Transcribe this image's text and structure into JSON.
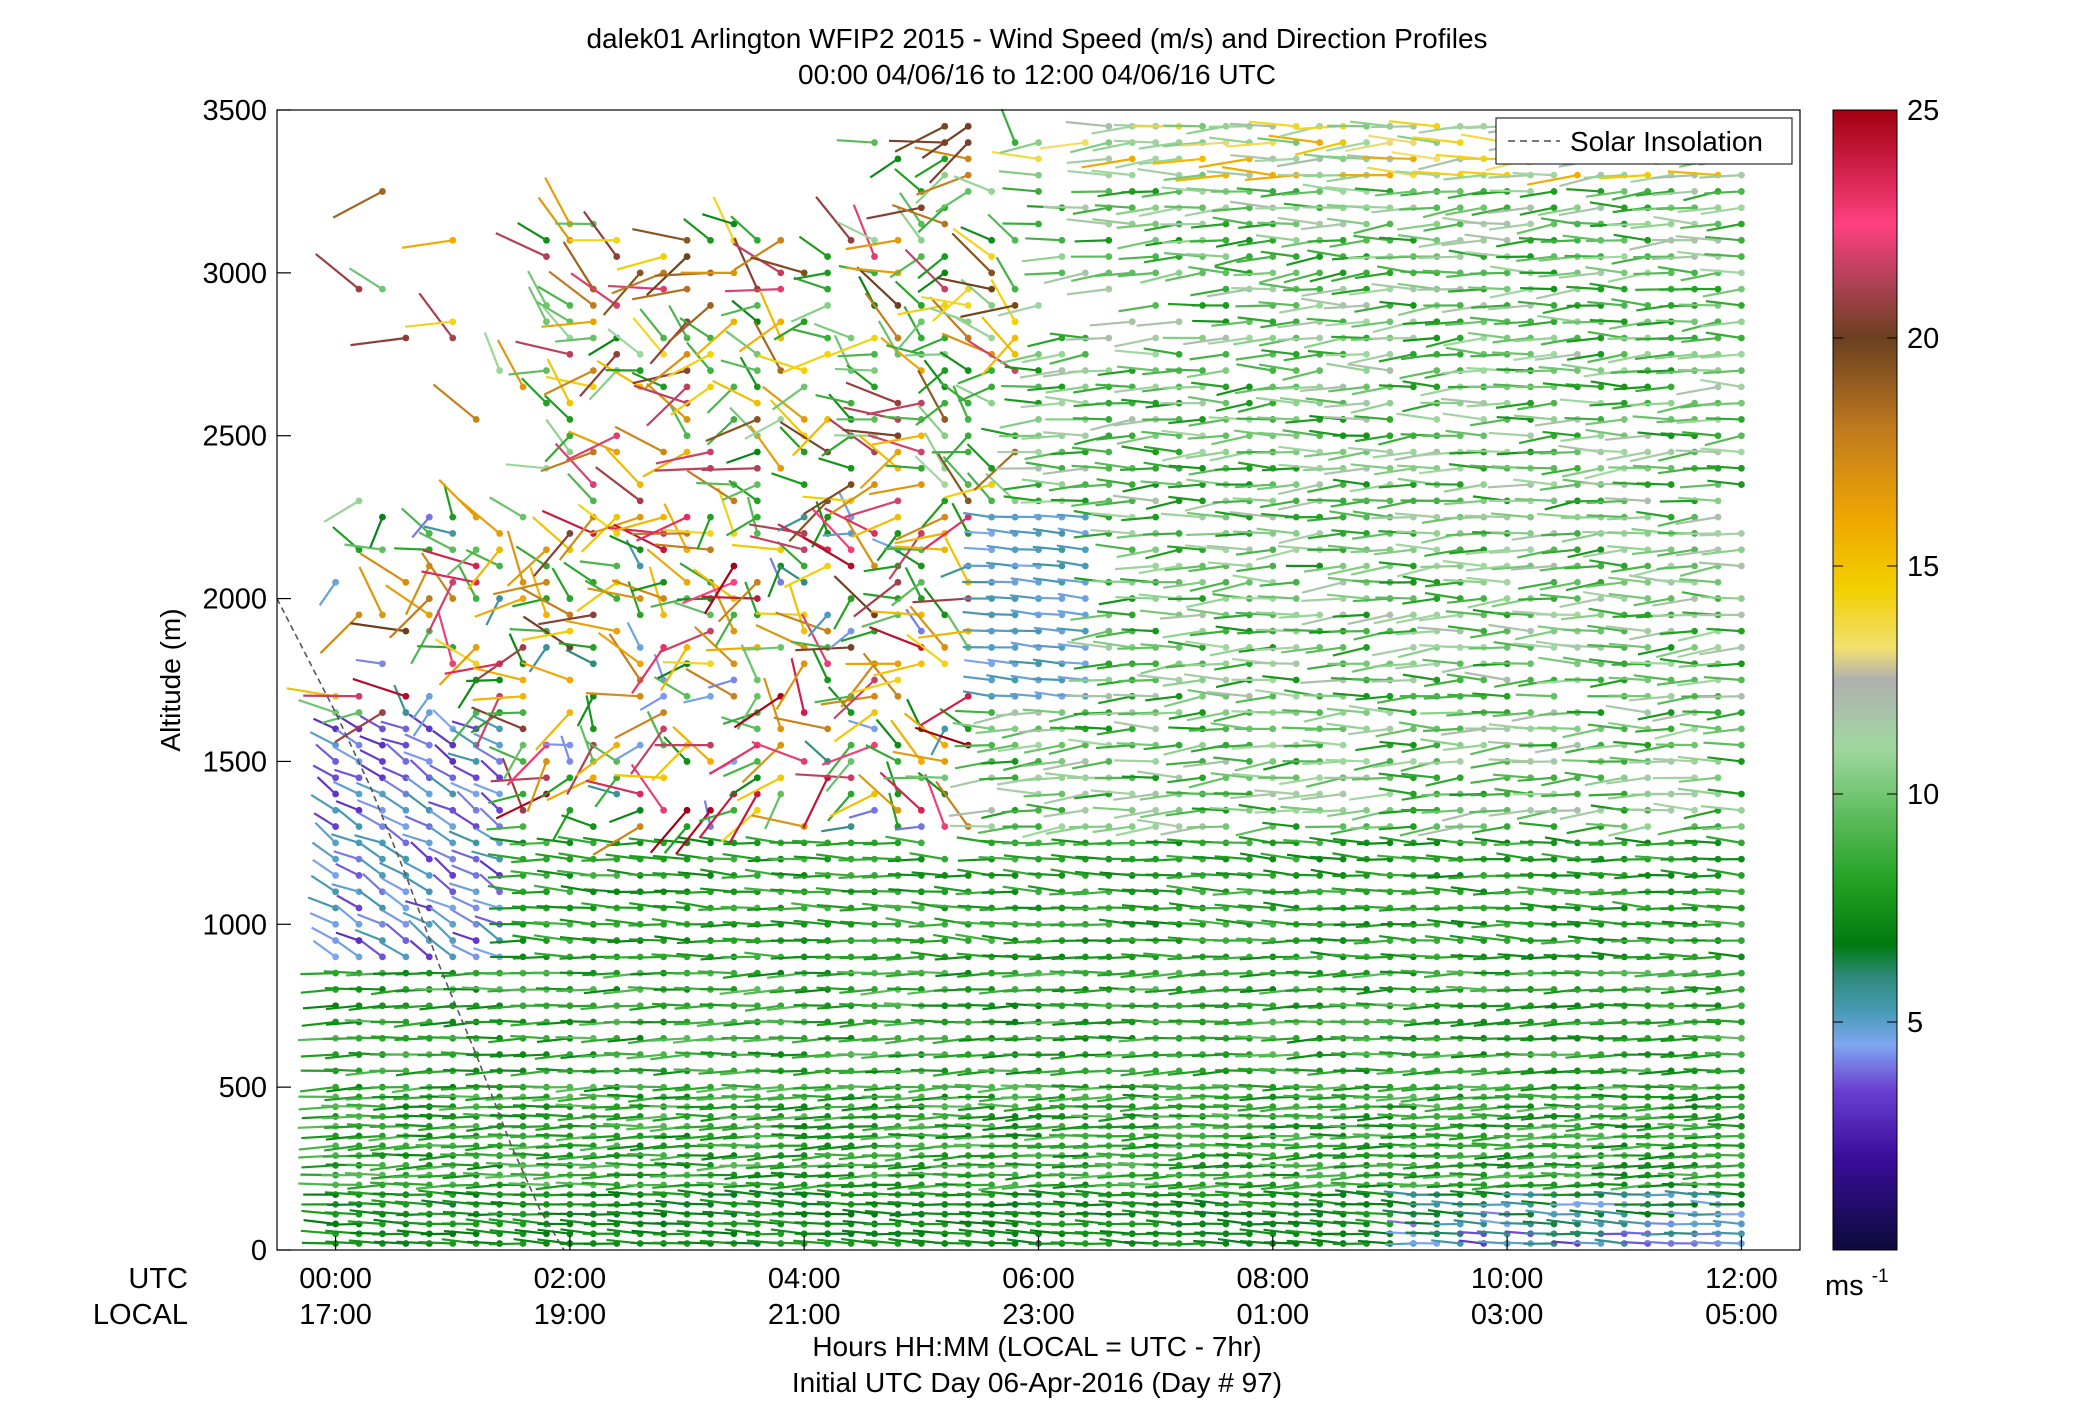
{
  "chart_data": {
    "type": "scatter",
    "subtype": "wind-barb profile",
    "title": "dalek01 Arlington WFIP2 2015 - Wind Speed (m/s) and Direction Profiles",
    "subtitle": "00:00 04/06/16 to 12:00 04/06/16  UTC",
    "ylabel": "Altitude (m)",
    "xlabel": "Hours HH:MM  (LOCAL = UTC - 7hr)",
    "xlabel2": "Initial UTC Day 06-Apr-2016 (Day # 97)",
    "row_label_utc": "UTC",
    "row_label_local": "LOCAL",
    "x_range_hours": [
      -0.5,
      12.5
    ],
    "ylim": [
      0,
      3500
    ],
    "grid": false,
    "x_ticks_utc": [
      "00:00",
      "02:00",
      "04:00",
      "06:00",
      "08:00",
      "10:00",
      "12:00"
    ],
    "x_ticks_local": [
      "17:00",
      "19:00",
      "21:00",
      "23:00",
      "01:00",
      "03:00",
      "05:00"
    ],
    "x_tick_hours": [
      0,
      2,
      4,
      6,
      8,
      10,
      12
    ],
    "y_ticks": [
      0,
      500,
      1000,
      1500,
      2000,
      2500,
      3000,
      3500
    ],
    "legend": {
      "entries": [
        "Solar Insolation"
      ],
      "placement": "top-right"
    },
    "colorbar": {
      "ticks": [
        5,
        10,
        15,
        20,
        25
      ],
      "range": [
        0,
        25
      ],
      "unit_label": "ms",
      "unit_exponent": "-1",
      "stops": [
        {
          "v": 0,
          "c": "#0b0b3a"
        },
        {
          "v": 2,
          "c": "#3a0c9a"
        },
        {
          "v": 3.5,
          "c": "#6a3fd0"
        },
        {
          "v": 4.5,
          "c": "#7fa6f2"
        },
        {
          "v": 5.2,
          "c": "#4a9bb8"
        },
        {
          "v": 6,
          "c": "#2e8a7a"
        },
        {
          "v": 6.7,
          "c": "#007a10"
        },
        {
          "v": 8,
          "c": "#20a020"
        },
        {
          "v": 9.5,
          "c": "#5cbc5c"
        },
        {
          "v": 11,
          "c": "#a0d8a0"
        },
        {
          "v": 12.5,
          "c": "#b0b0b0"
        },
        {
          "v": 13.2,
          "c": "#f2e070"
        },
        {
          "v": 14.5,
          "c": "#f2d000"
        },
        {
          "v": 16,
          "c": "#f0a800"
        },
        {
          "v": 18,
          "c": "#c07a20"
        },
        {
          "v": 20,
          "c": "#6a4020"
        },
        {
          "v": 21.5,
          "c": "#c04060"
        },
        {
          "v": 22.5,
          "c": "#ff4080"
        },
        {
          "v": 25,
          "c": "#a00010"
        }
      ]
    },
    "solar_insolation": {
      "hours": [
        -0.5,
        -0.3,
        0.0,
        0.3,
        0.6,
        0.9,
        1.2,
        1.5,
        1.75,
        1.95
      ],
      "altitude": [
        2000,
        1860,
        1650,
        1420,
        1150,
        860,
        600,
        320,
        120,
        0
      ]
    },
    "profile_hours": [
      0.0,
      0.2,
      0.4,
      0.6,
      0.8,
      1.0,
      1.2,
      1.4,
      1.6,
      1.8,
      2.0,
      2.2,
      2.4,
      2.6,
      2.8,
      3.0,
      3.2,
      3.4,
      3.6,
      3.8,
      4.0,
      4.2,
      4.4,
      4.6,
      4.8,
      5.0,
      5.2,
      5.4,
      5.6,
      5.8,
      6.0,
      6.2,
      6.4,
      6.6,
      6.8,
      7.0,
      7.2,
      7.4,
      7.6,
      7.8,
      8.0,
      8.2,
      8.4,
      8.6,
      8.8,
      9.0,
      9.2,
      9.4,
      9.6,
      9.8,
      10.0,
      10.2,
      10.4,
      10.6,
      10.8,
      11.0,
      11.2,
      11.4,
      11.6,
      11.8,
      12.0
    ],
    "altitude_levels_m": [
      20,
      50,
      80,
      110,
      140,
      170,
      200,
      230,
      260,
      290,
      320,
      350,
      380,
      410,
      440,
      470,
      500,
      550,
      600,
      650,
      700,
      750,
      800,
      850,
      900,
      950,
      1000,
      1050,
      1100,
      1150,
      1200,
      1250,
      1300,
      1350,
      1400,
      1450,
      1500,
      1550,
      1600,
      1650,
      1700,
      1750,
      1800,
      1850,
      1900,
      1950,
      2000,
      2050,
      2100,
      2150,
      2200,
      2250,
      2300,
      2350,
      2400,
      2450,
      2500,
      2550,
      2600,
      2650,
      2700,
      2750,
      2800,
      2850,
      2900,
      2950,
      3000,
      3050,
      3100,
      3150,
      3200,
      3250,
      3300,
      3350,
      3400,
      3450
    ],
    "wind_field_summary": [
      {
        "hours": [
          0,
          12
        ],
        "altitude": [
          0,
          200
        ],
        "speed_ms": 7,
        "direction": "westerly, low green",
        "note": "after 09:00 speeds drop to 3-5 m/s near surface"
      },
      {
        "hours": [
          0,
          12
        ],
        "altitude": [
          200,
          900
        ],
        "speed_ms": 8,
        "direction": "westerly"
      },
      {
        "hours": [
          0,
          1.5
        ],
        "altitude": [
          900,
          1600
        ],
        "speed_ms": 4,
        "direction": "north-westerly, blue-purple"
      },
      {
        "hours": [
          1.5,
          12
        ],
        "altitude": [
          900,
          1300
        ],
        "speed_ms": 8,
        "direction": "westerly"
      },
      {
        "hours": [
          0.8,
          5.5
        ],
        "altitude": [
          1300,
          2300
        ],
        "speed_ms": 17,
        "direction": "mixed, yellow-red"
      },
      {
        "hours": [
          5.5,
          12
        ],
        "altitude": [
          1300,
          3500
        ],
        "speed_ms": 9,
        "direction": "westerly, green"
      },
      {
        "hours": [
          2,
          6
        ],
        "altitude": [
          2300,
          3100
        ],
        "speed_ms": 15,
        "direction": "mixed"
      },
      {
        "hours": [
          6,
          12
        ],
        "altitude": [
          3200,
          3500
        ],
        "speed_ms": 14,
        "direction": "westerly, yellow"
      }
    ]
  }
}
